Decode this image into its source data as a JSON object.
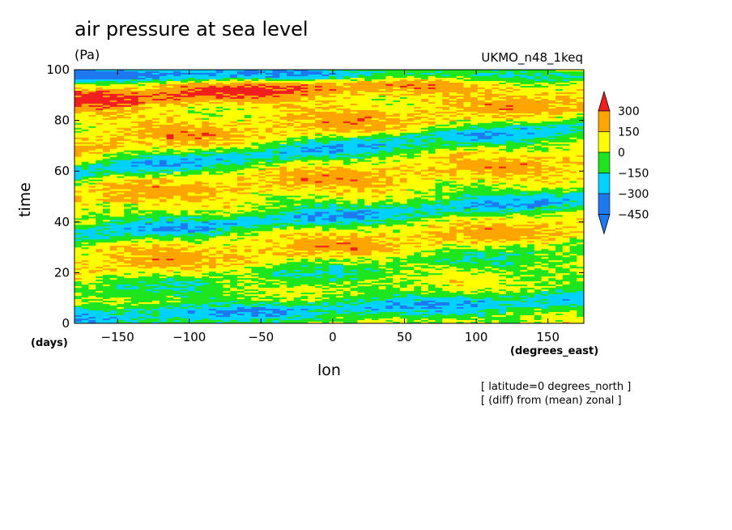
{
  "chart_data": {
    "type": "heatmap",
    "title": "air pressure at sea level",
    "units": "(Pa)",
    "source_label": "UKMO_n48_1keq",
    "xlabel": "lon",
    "x_units": "(degrees_east)",
    "ylabel": "time",
    "y_units": "(days)",
    "xlim": [
      -180,
      175
    ],
    "ylim": [
      0,
      100
    ],
    "x_ticks": [
      -150,
      -100,
      -50,
      0,
      50,
      100,
      150
    ],
    "y_ticks": [
      0,
      20,
      40,
      60,
      80,
      100
    ],
    "x_tick_labels": [
      "−150",
      "−100",
      "−50",
      "0",
      "50",
      "100",
      "150"
    ],
    "y_tick_labels": [
      "0",
      "20",
      "40",
      "60",
      "80",
      "100"
    ],
    "colorbar": {
      "levels": [
        -450,
        -300,
        -150,
        0,
        150,
        300
      ],
      "labels": [
        "−450",
        "−300",
        "−150",
        "0",
        "150",
        "300"
      ],
      "colors": [
        "#1e78f0",
        "#00d2ff",
        "#1ee61e",
        "#ffff00",
        "#ffa500",
        "#f01e1e"
      ],
      "extend": "both"
    },
    "annotations": [
      "[ latitude=0 degrees_north ]",
      "[ (diff) from (mean) zonal ]"
    ],
    "bands": [
      {
        "time_at_lon_-180": 88,
        "slope_days_per_degree": 0.035,
        "value": 300,
        "width_days": 5
      },
      {
        "time_at_lon_-180": 70,
        "slope_days_per_degree": 0.05,
        "value": 150,
        "width_days": 6
      },
      {
        "time_at_lon_-180": 50,
        "slope_days_per_degree": 0.04,
        "value": 150,
        "width_days": 5
      },
      {
        "time_at_lon_-180": 22,
        "slope_days_per_degree": 0.045,
        "value": 150,
        "width_days": 6
      },
      {
        "time_at_lon_-180": 2,
        "slope_days_per_degree": 0.02,
        "value": -300,
        "width_days": 4
      },
      {
        "time_at_lon_-180": 98,
        "slope_days_per_degree": 0.0,
        "value": -450,
        "width_days": 3
      },
      {
        "time_at_lon_-180": 60,
        "slope_days_per_degree": 0.05,
        "value": -300,
        "width_days": 4
      },
      {
        "time_at_lon_-180": 35,
        "slope_days_per_degree": 0.04,
        "value": -300,
        "width_days": 4
      },
      {
        "time_at_lon_-180": 12,
        "slope_days_per_degree": 0.05,
        "value": -150,
        "width_days": 5
      }
    ]
  }
}
